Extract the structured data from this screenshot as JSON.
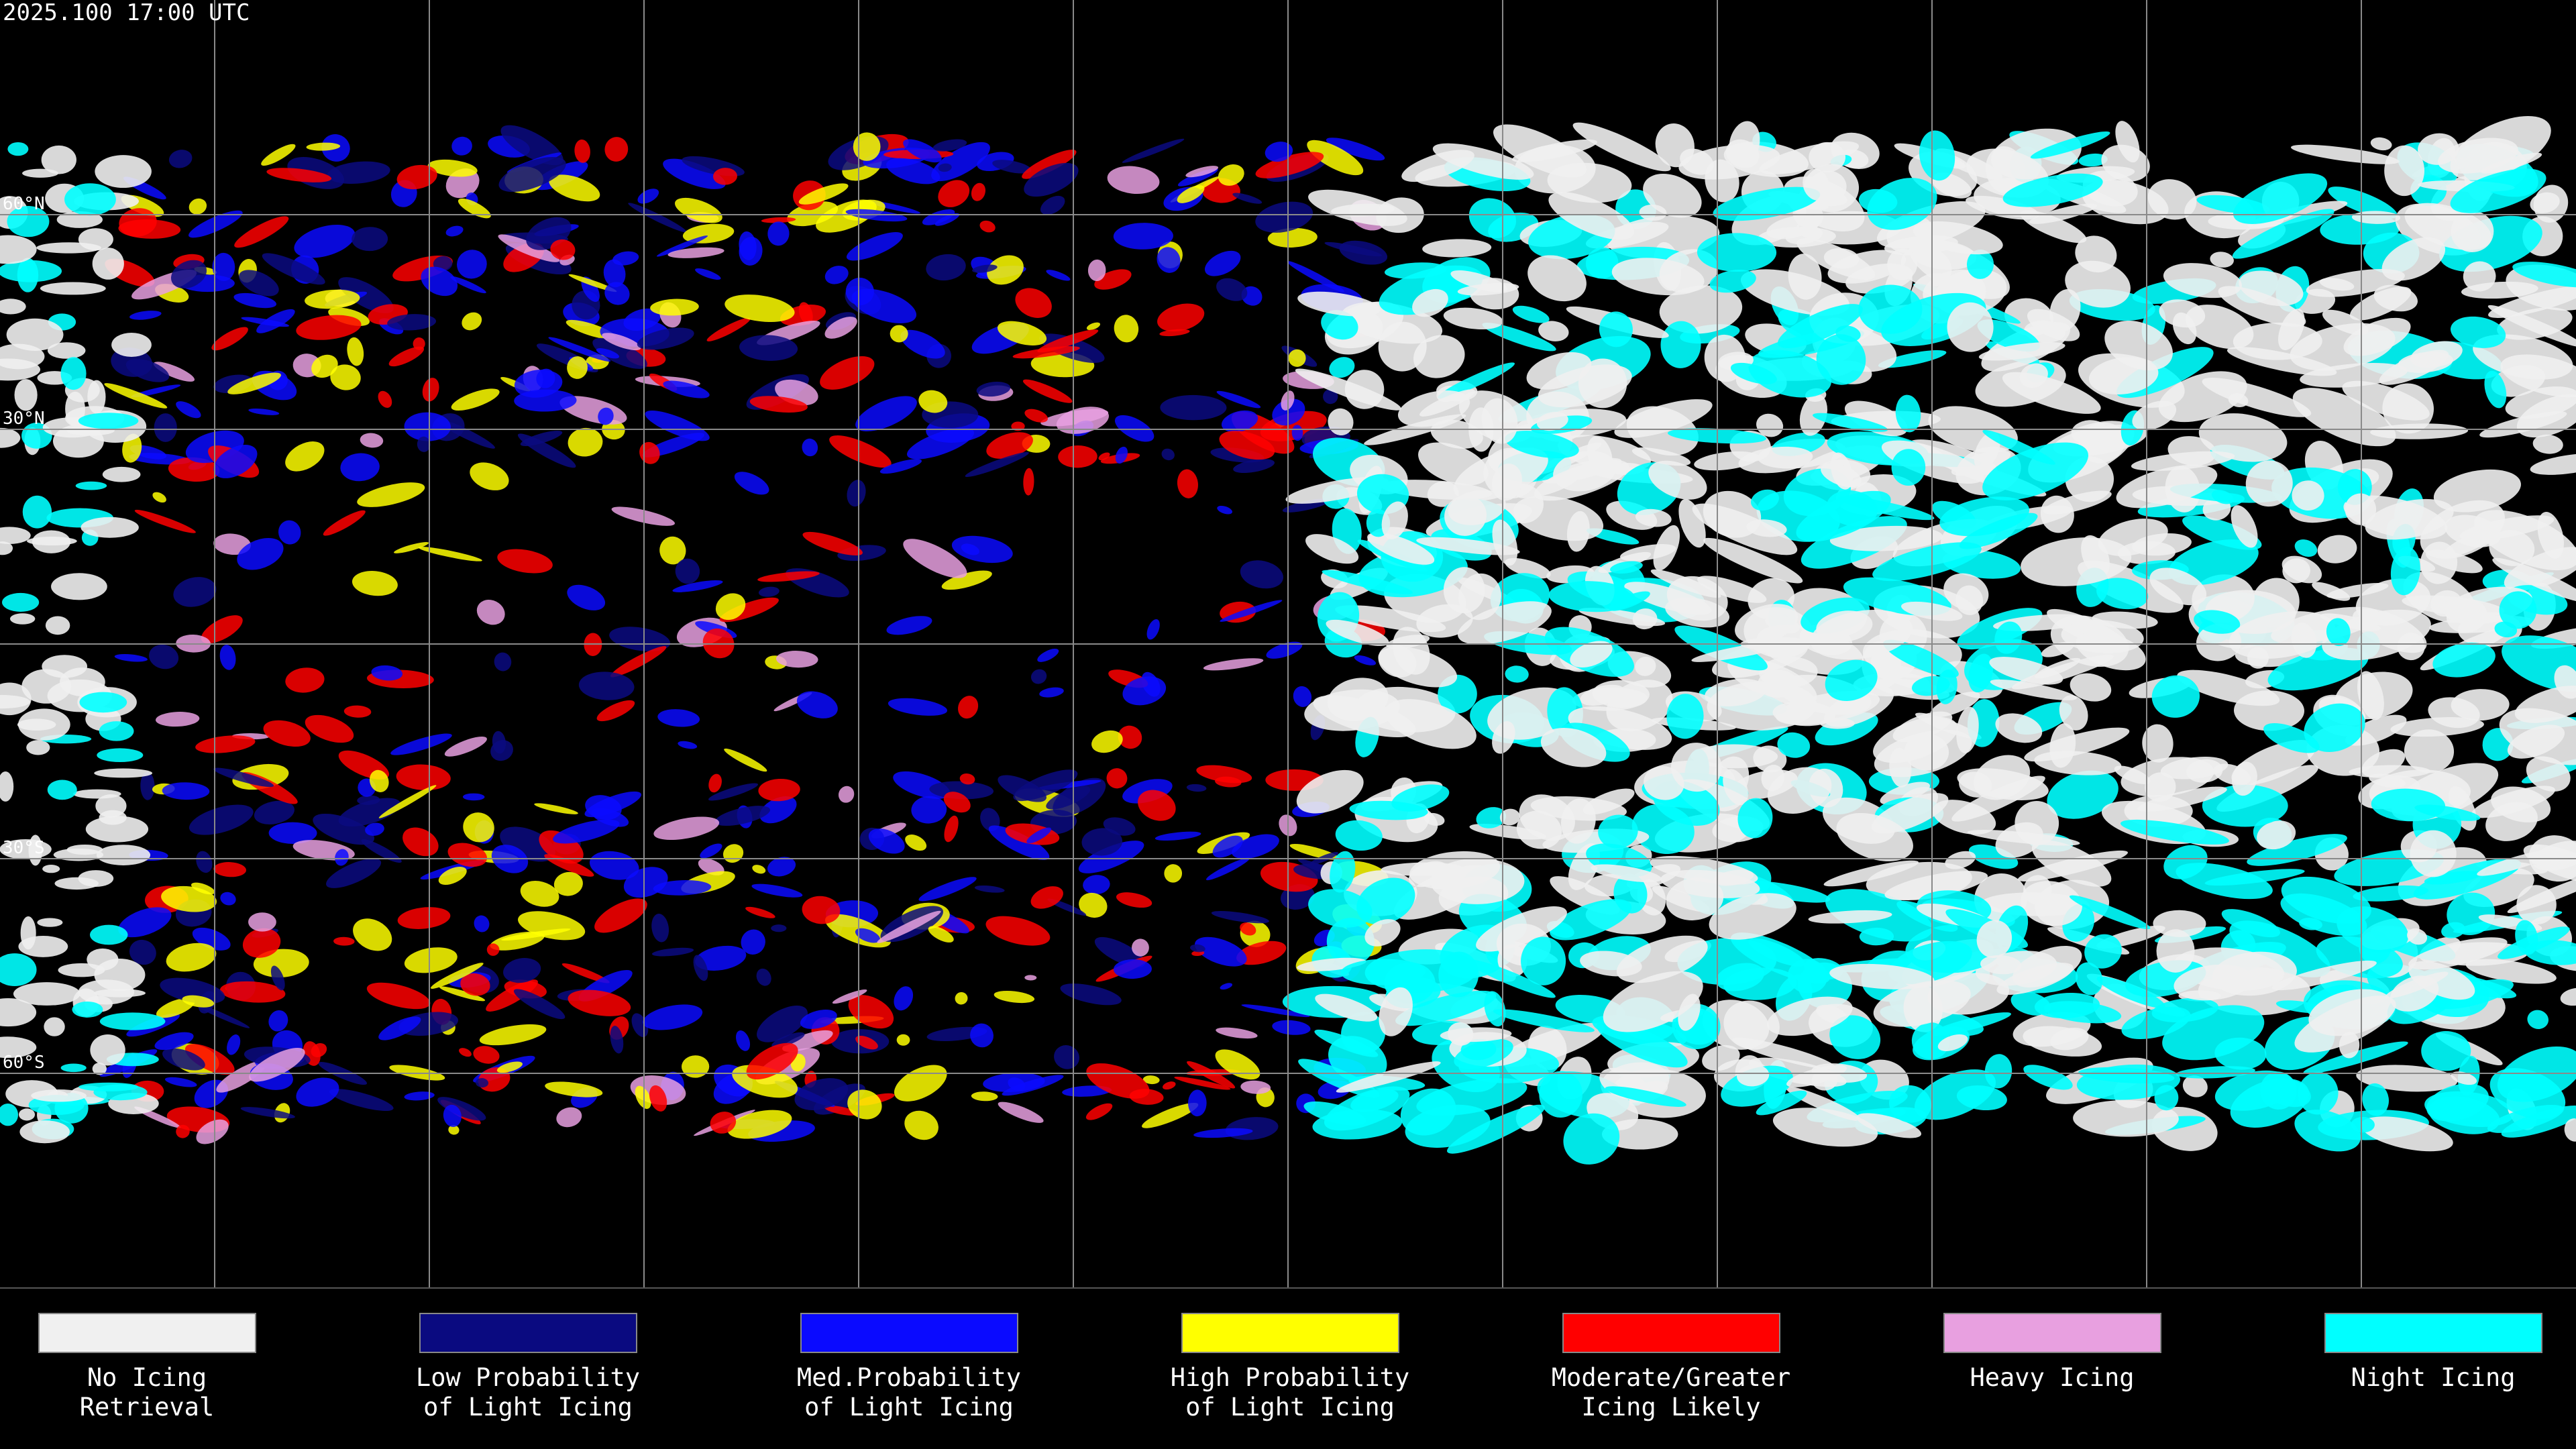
{
  "header": {
    "timestamp": "2025.100 17:00 UTC"
  },
  "map": {
    "latitude_labels": [
      "60°N",
      "30°N",
      "30°S",
      "60°S"
    ]
  },
  "legend": {
    "items": [
      {
        "color": "#f0f0f0",
        "lines": [
          "No Icing",
          "Retrieval"
        ]
      },
      {
        "color": "#0a0a80",
        "lines": [
          "Low Probability",
          "of Light Icing"
        ]
      },
      {
        "color": "#0a0aff",
        "lines": [
          "Med.Probability",
          "of Light Icing"
        ]
      },
      {
        "color": "#ffff00",
        "lines": [
          "High Probability",
          "of Light Icing"
        ]
      },
      {
        "color": "#ff0000",
        "lines": [
          "Moderate/Greater",
          "Icing Likely"
        ]
      },
      {
        "color": "#e8a0e0",
        "lines": [
          "Heavy Icing"
        ]
      },
      {
        "color": "#00ffff",
        "lines": [
          "Night Icing"
        ]
      }
    ]
  }
}
